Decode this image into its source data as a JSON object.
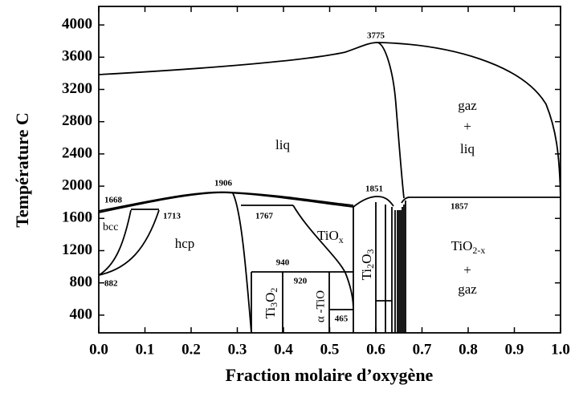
{
  "chart_data": {
    "type": "phase_diagram",
    "xlabel": "Fraction molaire d’oxygène",
    "ylabel": "Température  C",
    "xlim": [
      0,
      1
    ],
    "ylim": [
      180,
      4230
    ],
    "xticks": [
      {
        "value": 0,
        "label": "0.0"
      },
      {
        "value": 0.1,
        "label": "0.1"
      },
      {
        "value": 0.2,
        "label": "0.2"
      },
      {
        "value": 0.3,
        "label": "0.3"
      },
      {
        "value": 0.4,
        "label": "0.4"
      },
      {
        "value": 0.5,
        "label": "0.5"
      },
      {
        "value": 0.6,
        "label": "0.6"
      },
      {
        "value": 0.7,
        "label": "0.7"
      },
      {
        "value": 0.8,
        "label": "0.8"
      },
      {
        "value": 0.9,
        "label": "0.9"
      },
      {
        "value": 1,
        "label": "1.0"
      }
    ],
    "yticks": [
      400,
      800,
      1200,
      1600,
      2000,
      2400,
      2800,
      3200,
      3600,
      4000
    ],
    "temperature_labels": [
      3775,
      1906,
      1668,
      1713,
      1767,
      1851,
      1857,
      940,
      920,
      882,
      465
    ],
    "phase_labels": {
      "liq": "liq",
      "gaz_liq": [
        "gaz",
        "+",
        "liq"
      ],
      "bcc": "bcc",
      "hcp": "hcp",
      "tiox": {
        "base": "TiO",
        "sub": "x"
      },
      "ti2o3": {
        "a": "Ti",
        "b": "2",
        "c": "O",
        "d": "3"
      },
      "ti3o2": {
        "a": "Ti",
        "b": "3",
        "c": "O",
        "d": "2"
      },
      "atio": "α -TiO",
      "tio2x": {
        "base": "TiO",
        "sub": "2-x"
      },
      "tio2x_gaz": [
        "+",
        "gaz"
      ]
    }
  }
}
